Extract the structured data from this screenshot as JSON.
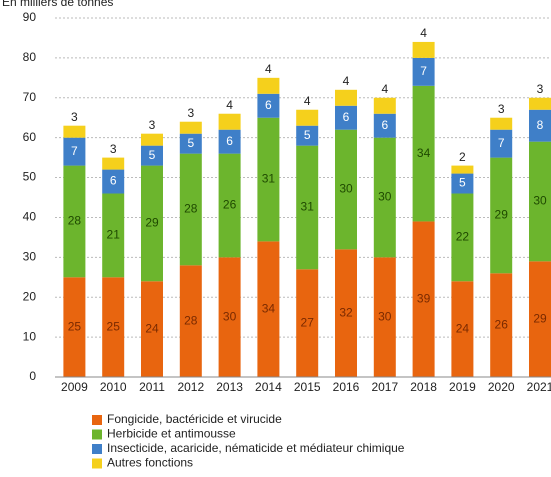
{
  "chart_data": {
    "type": "stacked_bar",
    "title": "En milliers de tonnes",
    "categories": [
      "2009",
      "2010",
      "2011",
      "2012",
      "2013",
      "2014",
      "2015",
      "2016",
      "2017",
      "2018",
      "2019",
      "2020",
      "2021"
    ],
    "series": [
      {
        "name": "Fongicide, bactéricide et virucide",
        "color": "#e8650f",
        "values": [
          25,
          25,
          24,
          28,
          30,
          34,
          27,
          32,
          30,
          39,
          24,
          26,
          29
        ]
      },
      {
        "name": "Herbicide et antimousse",
        "color": "#6cb52d",
        "values": [
          28,
          21,
          29,
          28,
          26,
          31,
          31,
          30,
          30,
          34,
          22,
          29,
          30
        ]
      },
      {
        "name": "Insecticide, acaricide, nématicide et médiateur chimique",
        "color": "#3f7fc8",
        "values": [
          7,
          6,
          5,
          5,
          6,
          6,
          5,
          6,
          6,
          7,
          5,
          7,
          8
        ]
      },
      {
        "name": "Autres fonctions",
        "color": "#f5d01c",
        "values": [
          3,
          3,
          3,
          3,
          4,
          4,
          4,
          4,
          4,
          4,
          2,
          3,
          3
        ]
      }
    ],
    "ylim": [
      0,
      90
    ],
    "yticks": [
      0,
      10,
      20,
      30,
      40,
      50,
      60,
      70,
      80,
      90
    ],
    "grid": true,
    "legend": "bottom"
  }
}
